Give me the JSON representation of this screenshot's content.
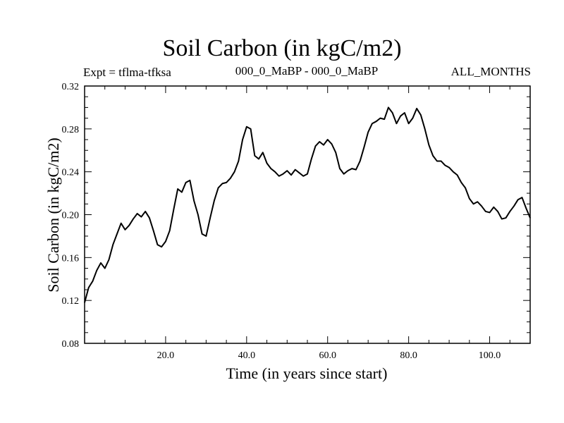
{
  "chart_data": {
    "type": "line",
    "title": "Soil Carbon (in kgC/m2)",
    "subtitle_left": "Expt = tflma-tfksa",
    "subtitle_center": "000_0_MaBP - 000_0_MaBP",
    "subtitle_right": "ALL_MONTHS",
    "xlabel": "Time (in years since start)",
    "ylabel": "Soil Carbon (in kgC/m2)",
    "xlim": [
      0,
      110
    ],
    "ylim": [
      0.08,
      0.32
    ],
    "xticks": [
      20,
      40,
      60,
      80,
      100
    ],
    "xtick_labels": [
      "20.0",
      "40.0",
      "60.0",
      "80.0",
      "100.0"
    ],
    "yticks": [
      0.08,
      0.12,
      0.16,
      0.2,
      0.24,
      0.28,
      0.32
    ],
    "ytick_labels": [
      "0.08",
      "0.12",
      "0.16",
      "0.20",
      "0.24",
      "0.28",
      "0.32"
    ],
    "grid": false,
    "series": [
      {
        "name": "Soil Carbon",
        "color": "#000000",
        "x": [
          0,
          1,
          2,
          3,
          4,
          5,
          6,
          7,
          8,
          9,
          10,
          11,
          12,
          13,
          14,
          15,
          16,
          17,
          18,
          19,
          20,
          21,
          22,
          23,
          24,
          25,
          26,
          27,
          28,
          29,
          30,
          31,
          32,
          33,
          34,
          35,
          36,
          37,
          38,
          39,
          40,
          41,
          42,
          43,
          44,
          45,
          46,
          47,
          48,
          49,
          50,
          51,
          52,
          53,
          54,
          55,
          56,
          57,
          58,
          59,
          60,
          61,
          62,
          63,
          64,
          65,
          66,
          67,
          68,
          69,
          70,
          71,
          72,
          73,
          74,
          75,
          76,
          77,
          78,
          79,
          80,
          81,
          82,
          83,
          84,
          85,
          86,
          87,
          88,
          89,
          90,
          91,
          92,
          93,
          94,
          95,
          96,
          97,
          98,
          99,
          100,
          101,
          102,
          103,
          104,
          105,
          106,
          107,
          108,
          109,
          110
        ],
        "values": [
          0.118,
          0.132,
          0.138,
          0.148,
          0.155,
          0.15,
          0.158,
          0.172,
          0.182,
          0.192,
          0.186,
          0.19,
          0.196,
          0.201,
          0.198,
          0.203,
          0.197,
          0.185,
          0.172,
          0.17,
          0.175,
          0.185,
          0.205,
          0.224,
          0.221,
          0.23,
          0.232,
          0.213,
          0.2,
          0.182,
          0.18,
          0.197,
          0.213,
          0.225,
          0.229,
          0.23,
          0.234,
          0.24,
          0.25,
          0.27,
          0.282,
          0.28,
          0.255,
          0.252,
          0.258,
          0.248,
          0.243,
          0.24,
          0.236,
          0.238,
          0.241,
          0.237,
          0.242,
          0.239,
          0.236,
          0.238,
          0.252,
          0.264,
          0.268,
          0.265,
          0.27,
          0.266,
          0.258,
          0.243,
          0.238,
          0.241,
          0.243,
          0.242,
          0.25,
          0.263,
          0.277,
          0.285,
          0.287,
          0.29,
          0.289,
          0.3,
          0.295,
          0.285,
          0.292,
          0.295,
          0.285,
          0.29,
          0.299,
          0.293,
          0.28,
          0.265,
          0.255,
          0.25,
          0.25,
          0.246,
          0.244,
          0.24,
          0.237,
          0.23,
          0.225,
          0.215,
          0.21,
          0.212,
          0.208,
          0.203,
          0.202,
          0.207,
          0.203,
          0.196,
          0.197,
          0.203,
          0.208,
          0.214,
          0.216,
          0.206,
          0.197
        ]
      }
    ]
  }
}
